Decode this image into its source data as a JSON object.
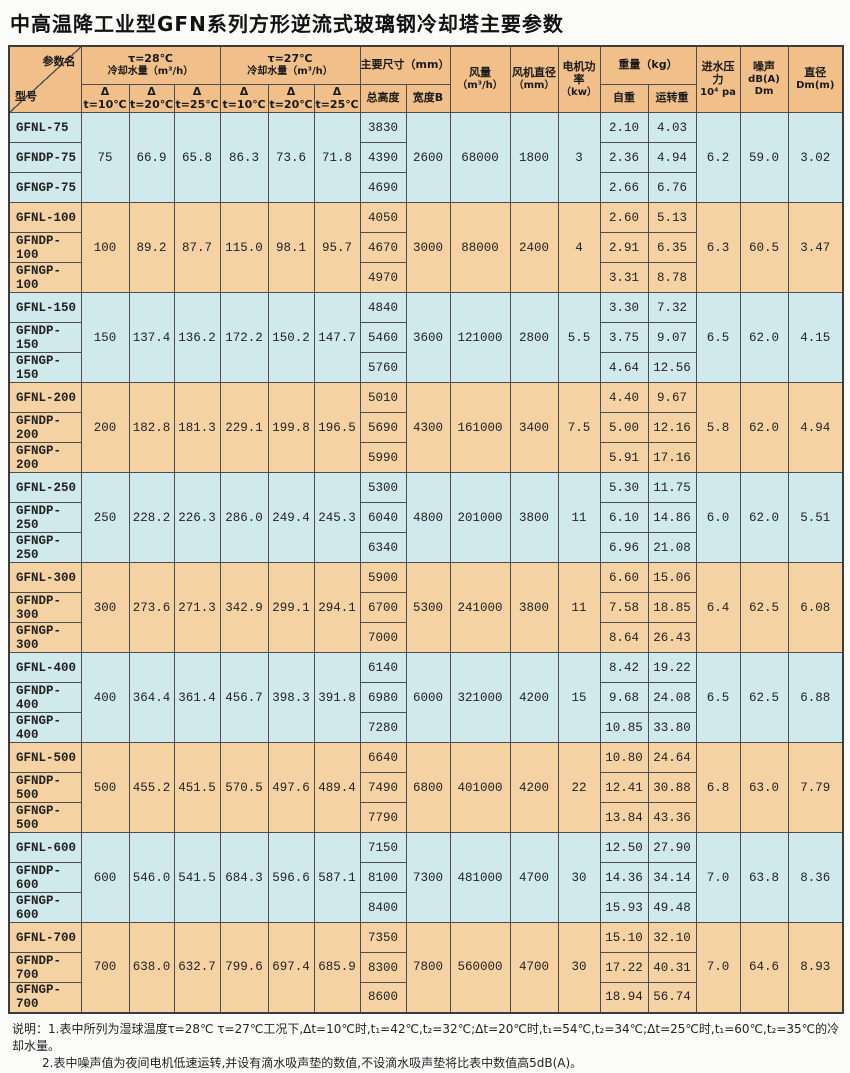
{
  "title": "中高温降工业型GFN系列方形逆流式玻璃钢冷却塔主要参数",
  "colors": {
    "header_bg": "#f1c08a",
    "blue_row": "#d0e9ed",
    "peach_row": "#f5d2a4",
    "border": "#4d4d4d",
    "page_bg": "#fbfbfa"
  },
  "header": {
    "corner_top": "参数名",
    "corner_bottom": "型号",
    "flow28_title": "τ=28℃",
    "flow28_sub": "冷却水量（m³/h）",
    "flow27_title": "τ=27℃",
    "flow27_sub": "冷却水量（m³/h）",
    "dt_cols": [
      "Δ t=10℃",
      "Δ t=20℃",
      "Δ t=25℃"
    ],
    "dims_title": "主要尺寸（mm）",
    "height_col": "总高度",
    "width_col": "宽度B",
    "airflow_line1": "风量",
    "airflow_line2": "（m³/h）",
    "fan_dia_line1": "风机直径",
    "fan_dia_line2": "（mm）",
    "motor_line1": "电机功率",
    "motor_line2": "（kw）",
    "weight_title": "重量（kg）",
    "self_weight_col": "自重",
    "run_weight_col": "运转重",
    "pressure_line1": "进水压力",
    "pressure_line2": "10⁴ pa",
    "noise_line1": "噪声",
    "noise_line2": "dB(A) Dm",
    "diameter_line1": "直径",
    "diameter_line2": "Dm(m)"
  },
  "groups": [
    {
      "color": "blue",
      "models": [
        "GFNL-75",
        "GFNDP-75",
        "GFNGP-75"
      ],
      "flow28": [
        "75",
        "66.9",
        "65.8"
      ],
      "flow27": [
        "86.3",
        "73.6",
        "71.8"
      ],
      "heights": [
        "3830",
        "4390",
        "4690"
      ],
      "width": "2600",
      "airflow": "68000",
      "fan_dia": "1800",
      "motor": "3",
      "self_weight": [
        "2.10",
        "2.36",
        "2.66"
      ],
      "run_weight": [
        "4.03",
        "4.94",
        "6.76"
      ],
      "pressure": "6.2",
      "noise": "59.0",
      "diameter": "3.02"
    },
    {
      "color": "peach",
      "models": [
        "GFNL-100",
        "GFNDP-100",
        "GFNGP-100"
      ],
      "flow28": [
        "100",
        "89.2",
        "87.7"
      ],
      "flow27": [
        "115.0",
        "98.1",
        "95.7"
      ],
      "heights": [
        "4050",
        "4670",
        "4970"
      ],
      "width": "3000",
      "airflow": "88000",
      "fan_dia": "2400",
      "motor": "4",
      "self_weight": [
        "2.60",
        "2.91",
        "3.31"
      ],
      "run_weight": [
        "5.13",
        "6.35",
        "8.78"
      ],
      "pressure": "6.3",
      "noise": "60.5",
      "diameter": "3.47"
    },
    {
      "color": "blue",
      "models": [
        "GFNL-150",
        "GFNDP-150",
        "GFNGP-150"
      ],
      "flow28": [
        "150",
        "137.4",
        "136.2"
      ],
      "flow27": [
        "172.2",
        "150.2",
        "147.7"
      ],
      "heights": [
        "4840",
        "5460",
        "5760"
      ],
      "width": "3600",
      "airflow": "121000",
      "fan_dia": "2800",
      "motor": "5.5",
      "self_weight": [
        "3.30",
        "3.75",
        "4.64"
      ],
      "run_weight": [
        "7.32",
        "9.07",
        "12.56"
      ],
      "pressure": "6.5",
      "noise": "62.0",
      "diameter": "4.15"
    },
    {
      "color": "peach",
      "models": [
        "GFNL-200",
        "GFNDP-200",
        "GFNGP-200"
      ],
      "flow28": [
        "200",
        "182.8",
        "181.3"
      ],
      "flow27": [
        "229.1",
        "199.8",
        "196.5"
      ],
      "heights": [
        "5010",
        "5690",
        "5990"
      ],
      "width": "4300",
      "airflow": "161000",
      "fan_dia": "3400",
      "motor": "7.5",
      "self_weight": [
        "4.40",
        "5.00",
        "5.91"
      ],
      "run_weight": [
        "9.67",
        "12.16",
        "17.16"
      ],
      "pressure": "5.8",
      "noise": "62.0",
      "diameter": "4.94"
    },
    {
      "color": "blue",
      "models": [
        "GFNL-250",
        "GFNDP-250",
        "GFNGP-250"
      ],
      "flow28": [
        "250",
        "228.2",
        "226.3"
      ],
      "flow27": [
        "286.0",
        "249.4",
        "245.3"
      ],
      "heights": [
        "5300",
        "6040",
        "6340"
      ],
      "width": "4800",
      "airflow": "201000",
      "fan_dia": "3800",
      "motor": "11",
      "self_weight": [
        "5.30",
        "6.10",
        "6.96"
      ],
      "run_weight": [
        "11.75",
        "14.86",
        "21.08"
      ],
      "pressure": "6.0",
      "noise": "62.0",
      "diameter": "5.51"
    },
    {
      "color": "peach",
      "models": [
        "GFNL-300",
        "GFNDP-300",
        "GFNGP-300"
      ],
      "flow28": [
        "300",
        "273.6",
        "271.3"
      ],
      "flow27": [
        "342.9",
        "299.1",
        "294.1"
      ],
      "heights": [
        "5900",
        "6700",
        "7000"
      ],
      "width": "5300",
      "airflow": "241000",
      "fan_dia": "3800",
      "motor": "11",
      "self_weight": [
        "6.60",
        "7.58",
        "8.64"
      ],
      "run_weight": [
        "15.06",
        "18.85",
        "26.43"
      ],
      "pressure": "6.4",
      "noise": "62.5",
      "diameter": "6.08"
    },
    {
      "color": "blue",
      "models": [
        "GFNL-400",
        "GFNDP-400",
        "GFNGP-400"
      ],
      "flow28": [
        "400",
        "364.4",
        "361.4"
      ],
      "flow27": [
        "456.7",
        "398.3",
        "391.8"
      ],
      "heights": [
        "6140",
        "6980",
        "7280"
      ],
      "width": "6000",
      "airflow": "321000",
      "fan_dia": "4200",
      "motor": "15",
      "self_weight": [
        "8.42",
        "9.68",
        "10.85"
      ],
      "run_weight": [
        "19.22",
        "24.08",
        "33.80"
      ],
      "pressure": "6.5",
      "noise": "62.5",
      "diameter": "6.88"
    },
    {
      "color": "peach",
      "models": [
        "GFNL-500",
        "GFNDP-500",
        "GFNGP-500"
      ],
      "flow28": [
        "500",
        "455.2",
        "451.5"
      ],
      "flow27": [
        "570.5",
        "497.6",
        "489.4"
      ],
      "heights": [
        "6640",
        "7490",
        "7790"
      ],
      "width": "6800",
      "airflow": "401000",
      "fan_dia": "4200",
      "motor": "22",
      "self_weight": [
        "10.80",
        "12.41",
        "13.84"
      ],
      "run_weight": [
        "24.64",
        "30.88",
        "43.36"
      ],
      "pressure": "6.8",
      "noise": "63.0",
      "diameter": "7.79"
    },
    {
      "color": "blue",
      "models": [
        "GFNL-600",
        "GFNDP-600",
        "GFNGP-600"
      ],
      "flow28": [
        "600",
        "546.0",
        "541.5"
      ],
      "flow27": [
        "684.3",
        "596.6",
        "587.1"
      ],
      "heights": [
        "7150",
        "8100",
        "8400"
      ],
      "width": "7300",
      "airflow": "481000",
      "fan_dia": "4700",
      "motor": "30",
      "self_weight": [
        "12.50",
        "14.36",
        "15.93"
      ],
      "run_weight": [
        "27.90",
        "34.14",
        "49.48"
      ],
      "pressure": "7.0",
      "noise": "63.8",
      "diameter": "8.36"
    },
    {
      "color": "peach",
      "models": [
        "GFNL-700",
        "GFNDP-700",
        "GFNGP-700"
      ],
      "flow28": [
        "700",
        "638.0",
        "632.7"
      ],
      "flow27": [
        "799.6",
        "697.4",
        "685.9"
      ],
      "heights": [
        "7350",
        "8300",
        "8600"
      ],
      "width": "7800",
      "airflow": "560000",
      "fan_dia": "4700",
      "motor": "30",
      "self_weight": [
        "15.10",
        "17.22",
        "18.94"
      ],
      "run_weight": [
        "32.10",
        "40.31",
        "56.74"
      ],
      "pressure": "7.0",
      "noise": "64.6",
      "diameter": "8.93"
    }
  ],
  "notes": [
    "说明：1.表中所列为湿球温度τ=28℃  τ=27℃工况下,Δt=10℃时,t₁=42℃,t₂=32℃;Δt=20℃时,t₁=54℃,t₂=34℃;Δt=25℃时,t₁=60℃,t₂=35℃的冷却水量。",
    "2.表中噪声值为夜间电机低速运转,并设有滴水吸声垫的数值,不设滴水吸声垫将比表中数值高5dB(A)。"
  ]
}
